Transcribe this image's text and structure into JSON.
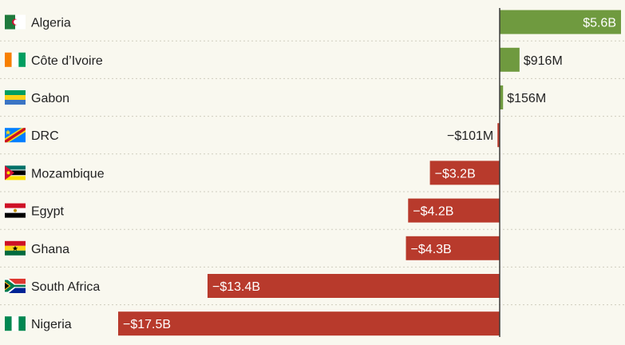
{
  "chart_data": {
    "type": "bar",
    "orientation": "horizontal",
    "title": "",
    "xlabel": "",
    "ylabel": "",
    "unit": "billion USD",
    "categories": [
      "Algeria",
      "Côte d’Ivoire",
      "Gabon",
      "DRC",
      "Mozambique",
      "Egypt",
      "Ghana",
      "South Africa",
      "Nigeria"
    ],
    "values": [
      5.6,
      0.916,
      0.156,
      -0.101,
      -3.2,
      -4.2,
      -4.3,
      -13.4,
      -17.5
    ],
    "value_labels": [
      "$5.6B",
      "$916M",
      "$156M",
      "−$101M",
      "−$3.2B",
      "−$4.2B",
      "−$4.3B",
      "−$13.4B",
      "−$17.5B"
    ],
    "flags": [
      "algeria-flag",
      "cote-divoire-flag",
      "gabon-flag",
      "drc-flag",
      "mozambique-flag",
      "egypt-flag",
      "ghana-flag",
      "south-africa-flag",
      "nigeria-flag"
    ],
    "xlim": [
      -17.5,
      5.6
    ],
    "grid": false,
    "legend": "none",
    "colors": {
      "positive": "#6f9a3f",
      "negative": "#b83a2c",
      "axis": "#3a3a3a"
    }
  }
}
